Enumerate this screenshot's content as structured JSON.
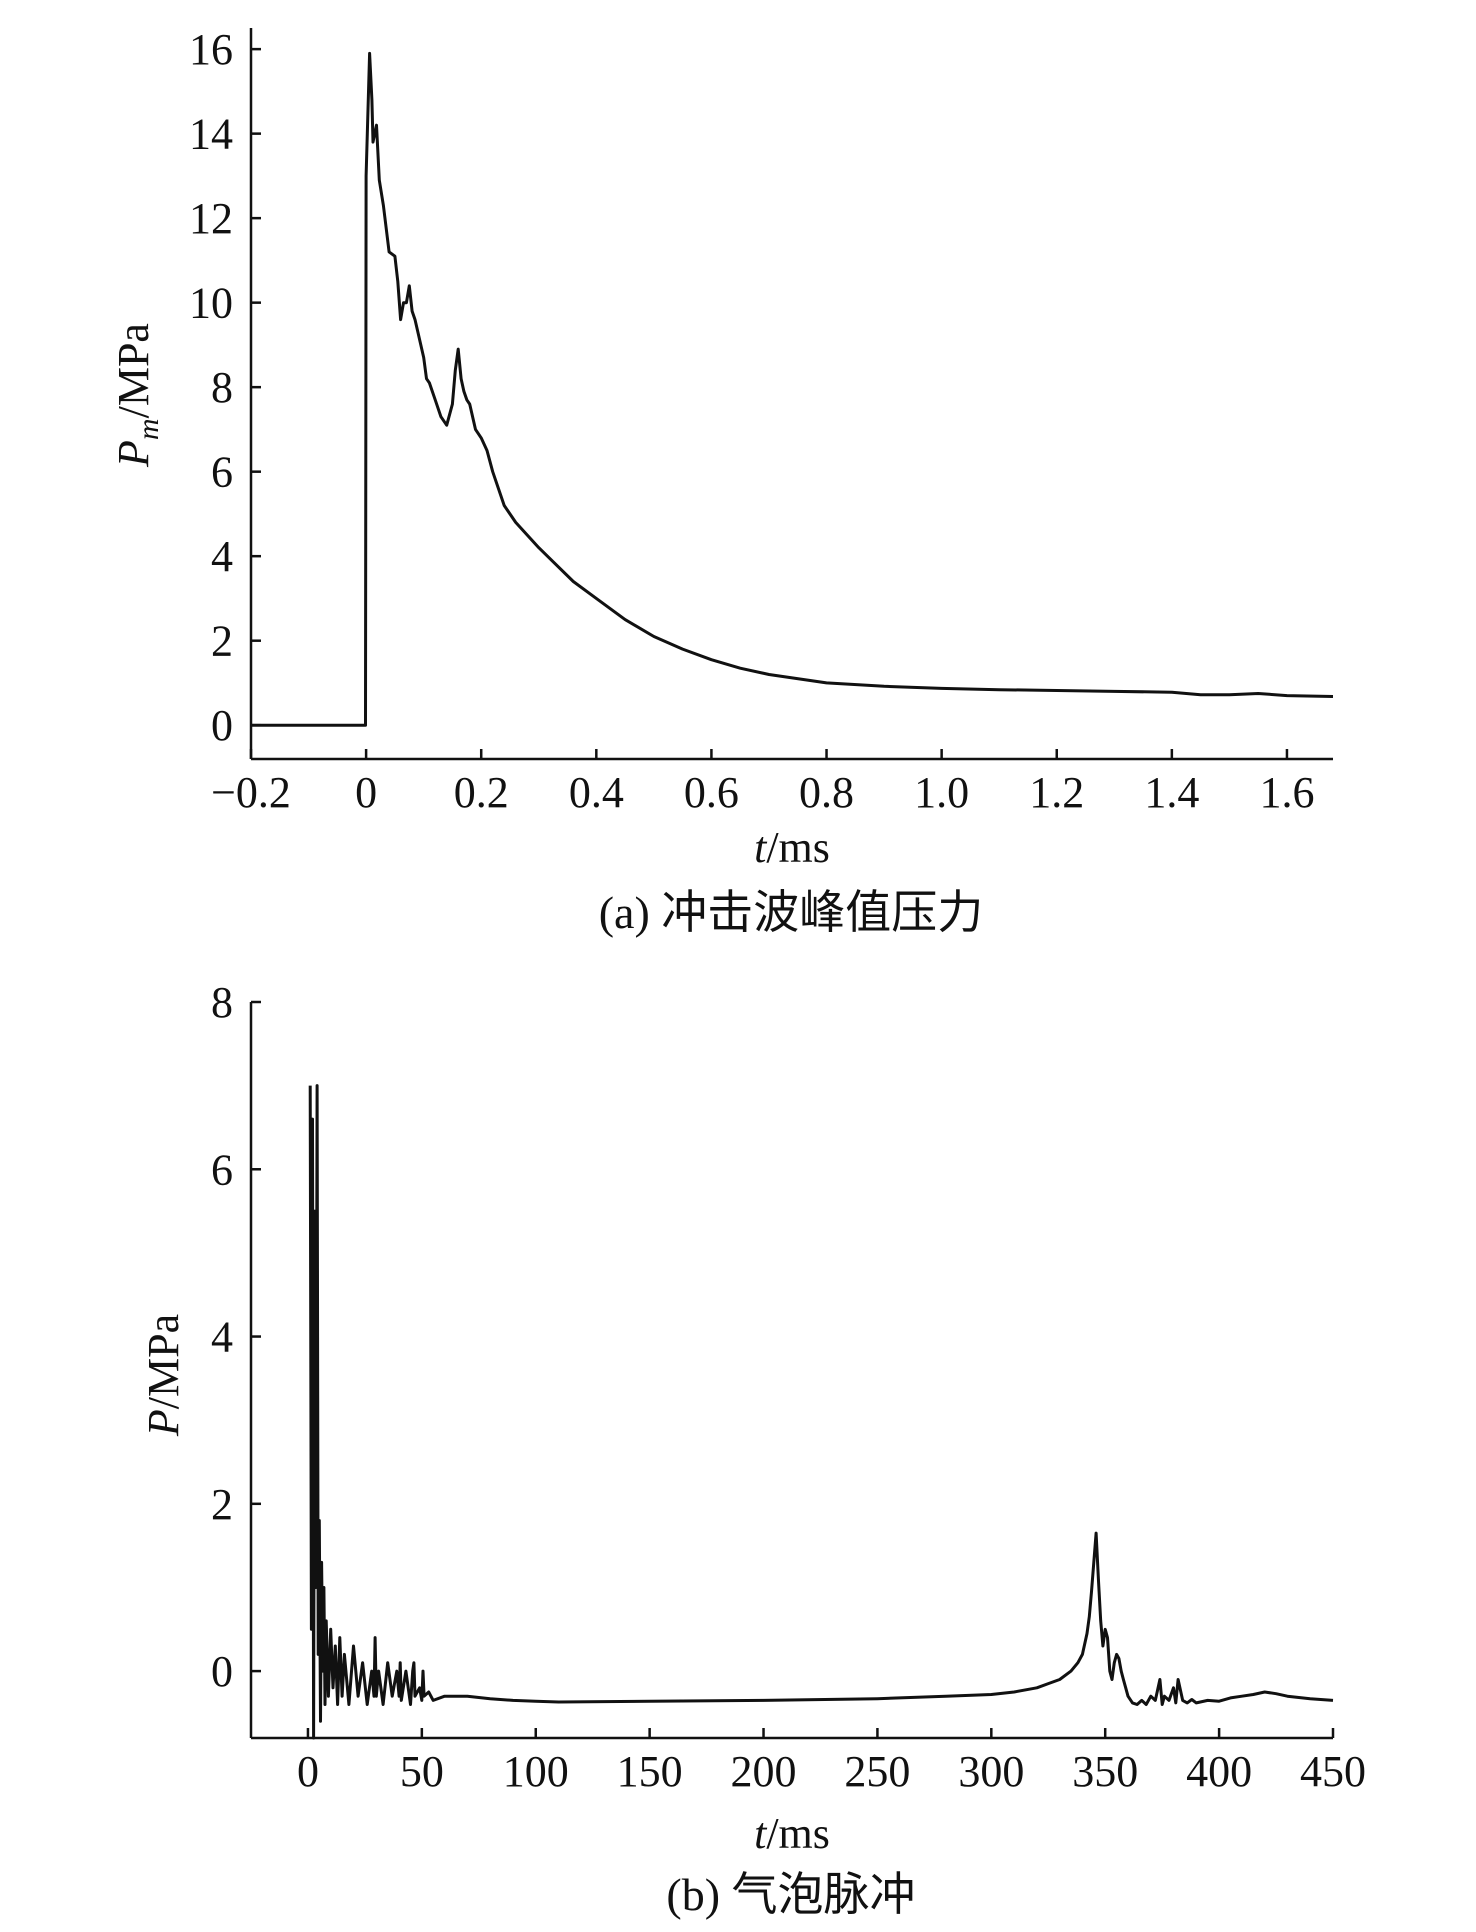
{
  "chart_data": [
    {
      "type": "line",
      "caption": "(a) 冲击波峰值压力",
      "ylabel_symbol": "P",
      "ylabel_subscript": "m",
      "ylabel_unit": "/MPa",
      "xlabel_symbol": "t",
      "xlabel_unit": "/ms",
      "xlim": [
        -0.2,
        1.68
      ],
      "ylim": [
        -0.8,
        16.5
      ],
      "x_ticks": [
        -0.2,
        0,
        0.2,
        0.4,
        0.6,
        0.8,
        1.0,
        1.2,
        1.4,
        1.6
      ],
      "x_tick_labels": [
        "−0.2",
        "0",
        "0.2",
        "0.4",
        "0.6",
        "0.8",
        "1.0",
        "1.2",
        "1.4",
        "1.6"
      ],
      "y_ticks": [
        0,
        2,
        4,
        6,
        8,
        10,
        12,
        14,
        16
      ],
      "y_tick_labels": [
        "0",
        "2",
        "4",
        "6",
        "8",
        "10",
        "12",
        "14",
        "16"
      ],
      "series": [
        {
          "x": [
            -0.2,
            -0.001,
            0.0,
            0.006,
            0.01,
            0.012,
            0.018,
            0.023,
            0.03,
            0.04,
            0.05,
            0.055,
            0.06,
            0.065,
            0.07,
            0.075,
            0.08,
            0.085,
            0.09,
            0.1,
            0.105,
            0.11,
            0.12,
            0.13,
            0.14,
            0.15,
            0.155,
            0.16,
            0.165,
            0.17,
            0.175,
            0.18,
            0.19,
            0.2,
            0.21,
            0.22,
            0.24,
            0.26,
            0.28,
            0.3,
            0.33,
            0.36,
            0.4,
            0.45,
            0.5,
            0.55,
            0.6,
            0.65,
            0.7,
            0.8,
            0.9,
            1.0,
            1.1,
            1.2,
            1.3,
            1.4,
            1.45,
            1.5,
            1.55,
            1.6,
            1.68
          ],
          "y": [
            0.0,
            0.0,
            13.0,
            15.9,
            14.8,
            13.8,
            14.2,
            12.9,
            12.3,
            11.2,
            11.1,
            10.5,
            9.6,
            10.0,
            10.0,
            10.4,
            9.8,
            9.6,
            9.3,
            8.7,
            8.2,
            8.1,
            7.7,
            7.3,
            7.1,
            7.6,
            8.4,
            8.9,
            8.2,
            7.9,
            7.7,
            7.6,
            7.0,
            6.8,
            6.5,
            6.0,
            5.2,
            4.8,
            4.5,
            4.2,
            3.8,
            3.4,
            3.0,
            2.5,
            2.1,
            1.8,
            1.55,
            1.35,
            1.2,
            1.0,
            0.92,
            0.87,
            0.84,
            0.82,
            0.8,
            0.78,
            0.72,
            0.72,
            0.75,
            0.7,
            0.68
          ]
        }
      ]
    },
    {
      "type": "line",
      "caption": "(b) 气泡脉冲",
      "ylabel_symbol": "P",
      "ylabel_unit": "/MPa",
      "xlabel_symbol": "t",
      "xlabel_unit": "/ms",
      "xlim": [
        -25,
        450
      ],
      "ylim": [
        -0.8,
        8.0
      ],
      "x_ticks": [
        0,
        50,
        100,
        150,
        200,
        250,
        300,
        350,
        400,
        450
      ],
      "x_tick_labels": [
        "0",
        "50",
        "100",
        "150",
        "200",
        "250",
        "300",
        "350",
        "400",
        "450"
      ],
      "y_ticks": [
        0,
        2,
        4,
        6,
        8
      ],
      "y_tick_labels": [
        "0",
        "2",
        "4",
        "6",
        "8"
      ],
      "series": [
        {
          "x": [
            1,
            1.5,
            2,
            2.5,
            3,
            3.5,
            4,
            4.5,
            5,
            5.5,
            6,
            6.5,
            7,
            7.5,
            8,
            9,
            10,
            11,
            12,
            13,
            14,
            15,
            16,
            18,
            20,
            22,
            24,
            26,
            28,
            29,
            29.5,
            30,
            31,
            33,
            35,
            37,
            39,
            40,
            40.5,
            41,
            43,
            45,
            46,
            46.5,
            47,
            49,
            50,
            50.5,
            51,
            53,
            55,
            60,
            70,
            80,
            90,
            100,
            110,
            150,
            200,
            250,
            280,
            300,
            310,
            320,
            325,
            330,
            335,
            338,
            340,
            342,
            343,
            344,
            345,
            346,
            347,
            348,
            349,
            350,
            351,
            352,
            353,
            354,
            355,
            356,
            357,
            358,
            359,
            360,
            362,
            364,
            366,
            368,
            370,
            372,
            374,
            375,
            376,
            378,
            380,
            381,
            382,
            384,
            386,
            388,
            390,
            395,
            400,
            405,
            410,
            415,
            420,
            425,
            430,
            440,
            450
          ],
          "y": [
            7.0,
            0.5,
            6.6,
            -0.8,
            5.5,
            1.0,
            7.0,
            0.2,
            1.8,
            -0.6,
            1.3,
            0.0,
            1.0,
            -0.4,
            0.6,
            -0.3,
            0.5,
            -0.2,
            0.3,
            -0.4,
            0.4,
            -0.3,
            0.2,
            -0.4,
            0.3,
            -0.3,
            0.1,
            -0.4,
            0.0,
            -0.3,
            0.4,
            -0.3,
            0.0,
            -0.4,
            0.1,
            -0.3,
            0.0,
            -0.3,
            0.1,
            -0.35,
            0.0,
            -0.4,
            0.0,
            0.1,
            -0.3,
            -0.2,
            -0.35,
            0.0,
            -0.3,
            -0.25,
            -0.35,
            -0.3,
            -0.3,
            -0.33,
            -0.35,
            -0.36,
            -0.37,
            -0.36,
            -0.35,
            -0.33,
            -0.3,
            -0.28,
            -0.25,
            -0.2,
            -0.15,
            -0.1,
            0.0,
            0.1,
            0.2,
            0.45,
            0.65,
            0.95,
            1.3,
            1.65,
            1.1,
            0.6,
            0.3,
            0.5,
            0.4,
            0.0,
            -0.1,
            0.1,
            0.2,
            0.15,
            0.0,
            -0.1,
            -0.2,
            -0.3,
            -0.38,
            -0.4,
            -0.35,
            -0.4,
            -0.3,
            -0.35,
            -0.1,
            -0.4,
            -0.3,
            -0.35,
            -0.2,
            -0.38,
            -0.1,
            -0.35,
            -0.38,
            -0.34,
            -0.38,
            -0.35,
            -0.36,
            -0.32,
            -0.3,
            -0.28,
            -0.25,
            -0.27,
            -0.3,
            -0.33,
            -0.35
          ]
        }
      ]
    }
  ]
}
